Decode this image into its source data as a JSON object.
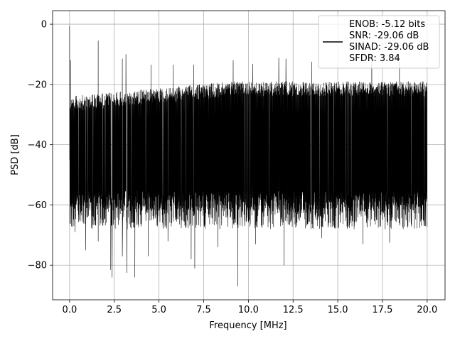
{
  "chart_data": {
    "type": "line",
    "title": "",
    "xlabel": "Frequency [MHz]",
    "ylabel": "PSD [dB]",
    "xlim": [
      -0.95,
      21.0
    ],
    "ylim": [
      -91.5,
      4.5
    ],
    "xticks": [
      0.0,
      2.5,
      5.0,
      7.5,
      10.0,
      12.5,
      15.0,
      17.5,
      20.0
    ],
    "xtick_labels": [
      "0.0",
      "2.5",
      "5.0",
      "7.5",
      "10.0",
      "12.5",
      "15.0",
      "17.5",
      "20.0"
    ],
    "yticks": [
      0,
      -20,
      -40,
      -60,
      -80
    ],
    "ytick_labels": [
      "0",
      "−20",
      "−40",
      "−60",
      "−80"
    ],
    "grid": true,
    "legend_position": "top-right",
    "series": [
      {
        "name": "",
        "color": "#000000",
        "description_values": {
          "x_range": [
            0.0,
            20.0
          ],
          "envelope_upper_start": -24,
          "envelope_upper_end": -19,
          "envelope_lower_typical": -62,
          "peaks": [
            {
              "x": 0.0,
              "y": -0.5
            },
            {
              "x": 0.05,
              "y": -12
            },
            {
              "x": 1.6,
              "y": -5.5
            },
            {
              "x": 2.95,
              "y": -11.5
            },
            {
              "x": 3.15,
              "y": -10
            },
            {
              "x": 4.55,
              "y": -13.5
            },
            {
              "x": 5.8,
              "y": -13.5
            },
            {
              "x": 6.95,
              "y": -13.5
            },
            {
              "x": 9.15,
              "y": -12
            },
            {
              "x": 10.25,
              "y": -13.2
            },
            {
              "x": 11.7,
              "y": -11.2
            },
            {
              "x": 12.1,
              "y": -11.5
            },
            {
              "x": 13.55,
              "y": -12.5
            },
            {
              "x": 16.9,
              "y": -12.0
            },
            {
              "x": 18.45,
              "y": -12.5
            }
          ],
          "dips": [
            {
              "x": 0.3,
              "y": -69
            },
            {
              "x": 0.9,
              "y": -75
            },
            {
              "x": 1.6,
              "y": -72
            },
            {
              "x": 2.3,
              "y": -81.5
            },
            {
              "x": 2.38,
              "y": -84
            },
            {
              "x": 2.95,
              "y": -77
            },
            {
              "x": 3.2,
              "y": -82.5
            },
            {
              "x": 3.65,
              "y": -84
            },
            {
              "x": 4.4,
              "y": -77
            },
            {
              "x": 5.5,
              "y": -72
            },
            {
              "x": 6.8,
              "y": -78
            },
            {
              "x": 7.0,
              "y": -81
            },
            {
              "x": 8.3,
              "y": -74
            },
            {
              "x": 9.4,
              "y": -87
            },
            {
              "x": 10.4,
              "y": -73
            },
            {
              "x": 12.0,
              "y": -80
            },
            {
              "x": 14.1,
              "y": -71
            },
            {
              "x": 16.4,
              "y": -73
            },
            {
              "x": 17.9,
              "y": -72.5
            },
            {
              "x": 19.9,
              "y": -67
            }
          ]
        }
      }
    ],
    "legend_lines": [
      "ENOB: -5.12 bits",
      "SNR: -29.06 dB",
      "SINAD: -29.06 dB",
      "SFDR: 3.84"
    ]
  }
}
